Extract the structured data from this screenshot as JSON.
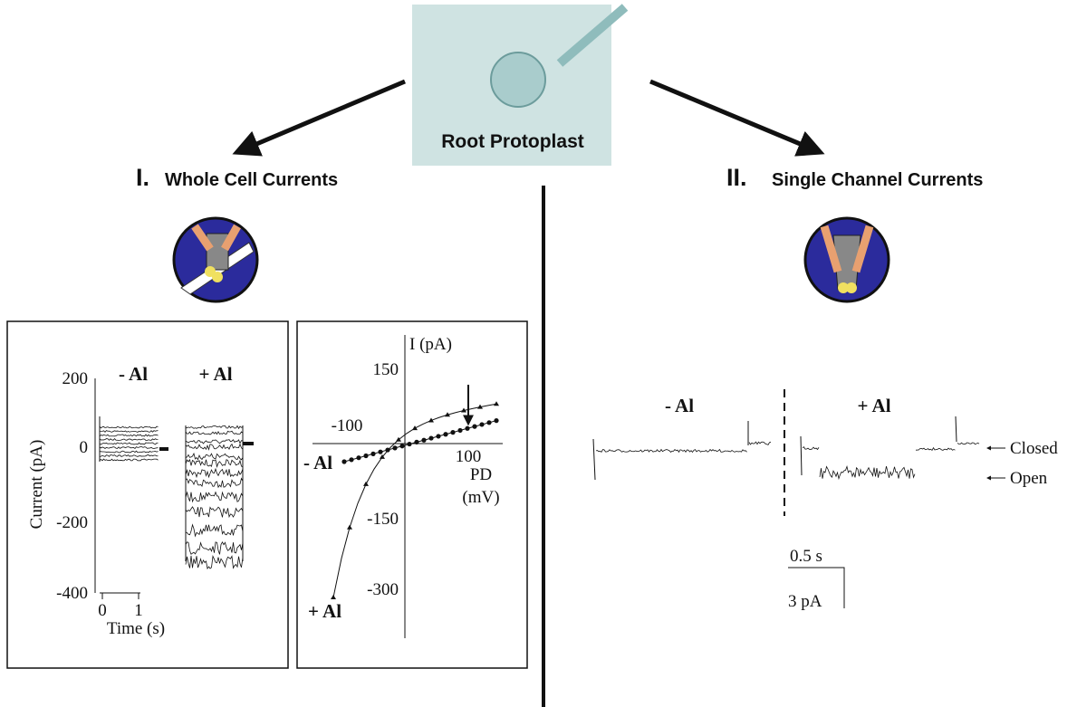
{
  "header": {
    "title": "Root Protoplast"
  },
  "left": {
    "numeral": "I.",
    "title": "Whole Cell Currents",
    "traces": {
      "y_label": "Current (pA)",
      "y_ticks": [
        "200",
        "0",
        "-200",
        "-400"
      ],
      "x_ticks": [
        "0",
        "1"
      ],
      "x_label": "Time (s)",
      "minus_label": "- Al",
      "plus_label": "+ Al"
    },
    "iv": {
      "y_label": "I (pA)",
      "y_ticks": [
        "150",
        "-150",
        "-300"
      ],
      "x_ticks": [
        "-100",
        "100"
      ],
      "x_label": "PD",
      "x_unit": "(mV)",
      "minus_label": "- Al",
      "plus_label": "+ Al"
    }
  },
  "right": {
    "numeral": "II.",
    "title": "Single Channel Currents",
    "minus_label": "- Al",
    "plus_label": "+ Al",
    "closed": "Closed",
    "open": "Open",
    "time_scale": "0.5 s",
    "current_scale": "3  pA"
  }
}
